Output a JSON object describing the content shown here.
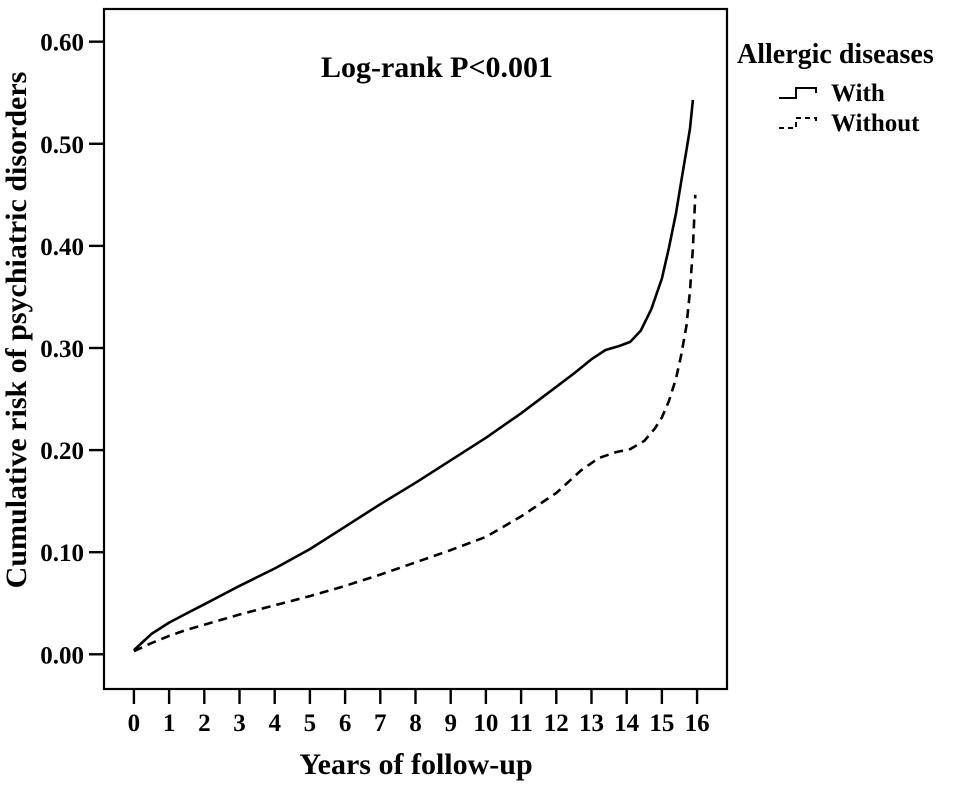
{
  "figure": {
    "background": "#ffffff",
    "line_color": "#000000",
    "text_color": "#000000"
  },
  "chart_data": {
    "type": "line",
    "title": "",
    "annotation": "Log-rank P<0.001",
    "xlabel": "Years of follow-up",
    "ylabel": "Cumulative risk of psychiatric disorders",
    "xlim": [
      -0.85,
      16.85
    ],
    "ylim": [
      -0.034,
      0.632
    ],
    "grid": false,
    "x_ticks": [
      {
        "value": 0,
        "label": "0"
      },
      {
        "value": 1,
        "label": "1"
      },
      {
        "value": 2,
        "label": "2"
      },
      {
        "value": 3,
        "label": "3"
      },
      {
        "value": 4,
        "label": "4"
      },
      {
        "value": 5,
        "label": "5"
      },
      {
        "value": 6,
        "label": "6"
      },
      {
        "value": 7,
        "label": "7"
      },
      {
        "value": 8,
        "label": "8"
      },
      {
        "value": 9,
        "label": "9"
      },
      {
        "value": 10,
        "label": "10"
      },
      {
        "value": 11,
        "label": "11"
      },
      {
        "value": 12,
        "label": "12"
      },
      {
        "value": 13,
        "label": "13"
      },
      {
        "value": 14,
        "label": "14"
      },
      {
        "value": 15,
        "label": "15"
      },
      {
        "value": 16,
        "label": "16"
      }
    ],
    "y_ticks": [
      {
        "value": 0.0,
        "label": "0.00"
      },
      {
        "value": 0.1,
        "label": "0.10"
      },
      {
        "value": 0.2,
        "label": "0.20"
      },
      {
        "value": 0.3,
        "label": "0.30"
      },
      {
        "value": 0.4,
        "label": "0.40"
      },
      {
        "value": 0.5,
        "label": "0.50"
      },
      {
        "value": 0.6,
        "label": "0.60"
      }
    ],
    "legend": {
      "title": "Allergic diseases",
      "position": "outside-top-right",
      "items": [
        {
          "name": "With",
          "line": "solid"
        },
        {
          "name": "Without",
          "line": "dashed"
        }
      ]
    },
    "series": [
      {
        "name": "With",
        "line": "solid",
        "color": "#000000",
        "points": [
          [
            0,
            0.004
          ],
          [
            0.25,
            0.012
          ],
          [
            0.5,
            0.02
          ],
          [
            1,
            0.031
          ],
          [
            1.5,
            0.04
          ],
          [
            2,
            0.049
          ],
          [
            3,
            0.067
          ],
          [
            4,
            0.084
          ],
          [
            5,
            0.103
          ],
          [
            6,
            0.125
          ],
          [
            7,
            0.147
          ],
          [
            8,
            0.168
          ],
          [
            9,
            0.19
          ],
          [
            10,
            0.212
          ],
          [
            11,
            0.236
          ],
          [
            12,
            0.262
          ],
          [
            12.5,
            0.275
          ],
          [
            13,
            0.289
          ],
          [
            13.4,
            0.298
          ],
          [
            13.8,
            0.302
          ],
          [
            14.1,
            0.306
          ],
          [
            14.4,
            0.317
          ],
          [
            14.7,
            0.338
          ],
          [
            15,
            0.368
          ],
          [
            15.2,
            0.398
          ],
          [
            15.4,
            0.432
          ],
          [
            15.55,
            0.463
          ],
          [
            15.7,
            0.494
          ],
          [
            15.8,
            0.515
          ],
          [
            15.88,
            0.543
          ]
        ]
      },
      {
        "name": "Without",
        "line": "dashed",
        "color": "#000000",
        "points": [
          [
            0,
            0.003
          ],
          [
            0.25,
            0.007
          ],
          [
            0.5,
            0.011
          ],
          [
            1,
            0.018
          ],
          [
            1.5,
            0.024
          ],
          [
            2,
            0.029
          ],
          [
            3,
            0.039
          ],
          [
            4,
            0.048
          ],
          [
            5,
            0.057
          ],
          [
            6,
            0.067
          ],
          [
            7,
            0.078
          ],
          [
            8,
            0.09
          ],
          [
            9,
            0.102
          ],
          [
            10,
            0.115
          ],
          [
            11,
            0.135
          ],
          [
            12,
            0.158
          ],
          [
            12.7,
            0.18
          ],
          [
            13.2,
            0.192
          ],
          [
            13.7,
            0.198
          ],
          [
            14.1,
            0.201
          ],
          [
            14.5,
            0.209
          ],
          [
            14.8,
            0.221
          ],
          [
            15,
            0.232
          ],
          [
            15.2,
            0.248
          ],
          [
            15.4,
            0.27
          ],
          [
            15.55,
            0.293
          ],
          [
            15.7,
            0.322
          ],
          [
            15.8,
            0.356
          ],
          [
            15.88,
            0.398
          ],
          [
            15.95,
            0.45
          ]
        ]
      }
    ]
  }
}
